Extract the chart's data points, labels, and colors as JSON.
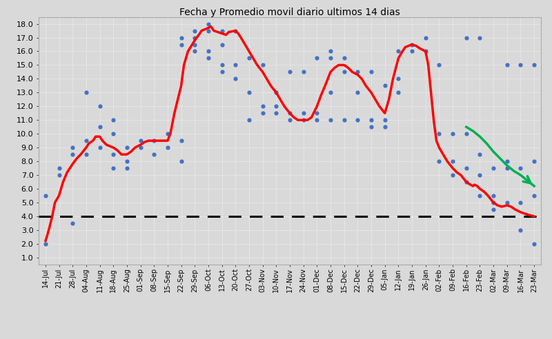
{
  "title": "Fecha y Promedio movil diario ultimos 14 dias",
  "ylim": [
    0.5,
    18.5
  ],
  "yticks": [
    1.0,
    2.0,
    3.0,
    4.0,
    5.0,
    6.0,
    7.0,
    8.0,
    9.0,
    10.0,
    11.0,
    12.0,
    13.0,
    14.0,
    15.0,
    16.0,
    17.0,
    18.0
  ],
  "x_labels": [
    "14-Jul",
    "21-Jul",
    "28-Jul",
    "04-Aug",
    "11-Aug",
    "18-Aug",
    "25-Aug",
    "01-Sep",
    "08-Sep",
    "15-Sep",
    "22-Sep",
    "29-Sep",
    "06-Oct",
    "13-Oct",
    "20-Oct",
    "27-Oct",
    "03-Nov",
    "10-Nov",
    "17-Nov",
    "24-Nov",
    "01-Dec",
    "08-Dec",
    "15-Dec",
    "22-Dec",
    "29-Dec",
    "05-Jan",
    "12-Jan",
    "19-Jan",
    "26-Jan",
    "02-Feb",
    "09-Feb",
    "16-Feb",
    "23-Feb",
    "02-Mar",
    "09-Mar",
    "16-Mar",
    "23-Mar"
  ],
  "dashed_line_y": 4.0,
  "background_color": "#d9d9d9",
  "grid_color": "#ffffff",
  "dot_color": "#4472c4",
  "line_color": "#ff0000",
  "dashed_color": "#000000",
  "arrow_color": "#00b050",
  "scatter_data": [
    [
      0,
      2.0
    ],
    [
      0,
      5.5
    ],
    [
      1,
      7.0
    ],
    [
      1,
      7.5
    ],
    [
      2,
      3.5
    ],
    [
      2,
      8.5
    ],
    [
      2,
      9.0
    ],
    [
      3,
      8.5
    ],
    [
      3,
      9.5
    ],
    [
      3,
      13.0
    ],
    [
      4,
      9.0
    ],
    [
      4,
      10.5
    ],
    [
      4,
      12.0
    ],
    [
      5,
      7.5
    ],
    [
      5,
      8.5
    ],
    [
      5,
      10.0
    ],
    [
      5,
      11.0
    ],
    [
      6,
      7.5
    ],
    [
      6,
      8.0
    ],
    [
      6,
      9.0
    ],
    [
      7,
      9.0
    ],
    [
      7,
      9.5
    ],
    [
      8,
      8.5
    ],
    [
      8,
      9.5
    ],
    [
      9,
      9.0
    ],
    [
      9,
      10.0
    ],
    [
      10,
      8.0
    ],
    [
      10,
      9.5
    ],
    [
      10,
      16.5
    ],
    [
      10,
      17.0
    ],
    [
      11,
      16.0
    ],
    [
      11,
      16.5
    ],
    [
      11,
      17.0
    ],
    [
      11,
      17.5
    ],
    [
      12,
      15.5
    ],
    [
      12,
      16.0
    ],
    [
      12,
      17.5
    ],
    [
      12,
      18.0
    ],
    [
      13,
      14.5
    ],
    [
      13,
      15.0
    ],
    [
      13,
      16.5
    ],
    [
      13,
      17.5
    ],
    [
      14,
      14.0
    ],
    [
      14,
      15.0
    ],
    [
      14,
      17.5
    ],
    [
      15,
      11.0
    ],
    [
      15,
      13.0
    ],
    [
      15,
      15.5
    ],
    [
      16,
      11.5
    ],
    [
      16,
      12.0
    ],
    [
      16,
      15.0
    ],
    [
      17,
      11.5
    ],
    [
      17,
      12.0
    ],
    [
      17,
      13.0
    ],
    [
      18,
      11.0
    ],
    [
      18,
      11.5
    ],
    [
      18,
      14.5
    ],
    [
      19,
      11.0
    ],
    [
      19,
      11.5
    ],
    [
      19,
      14.5
    ],
    [
      20,
      11.0
    ],
    [
      20,
      11.5
    ],
    [
      20,
      15.5
    ],
    [
      21,
      11.0
    ],
    [
      21,
      13.0
    ],
    [
      21,
      15.5
    ],
    [
      21,
      16.0
    ],
    [
      22,
      11.0
    ],
    [
      22,
      14.5
    ],
    [
      22,
      15.5
    ],
    [
      23,
      11.0
    ],
    [
      23,
      13.0
    ],
    [
      23,
      14.5
    ],
    [
      24,
      10.5
    ],
    [
      24,
      11.0
    ],
    [
      24,
      14.5
    ],
    [
      25,
      10.5
    ],
    [
      25,
      11.0
    ],
    [
      25,
      13.5
    ],
    [
      26,
      13.0
    ],
    [
      26,
      14.0
    ],
    [
      26,
      16.0
    ],
    [
      27,
      16.0
    ],
    [
      27,
      16.5
    ],
    [
      28,
      16.0
    ],
    [
      28,
      17.0
    ],
    [
      29,
      8.0
    ],
    [
      29,
      10.0
    ],
    [
      29,
      15.0
    ],
    [
      30,
      7.0
    ],
    [
      30,
      8.0
    ],
    [
      30,
      10.0
    ],
    [
      31,
      6.5
    ],
    [
      31,
      7.5
    ],
    [
      31,
      10.0
    ],
    [
      31,
      17.0
    ],
    [
      32,
      5.5
    ],
    [
      32,
      7.0
    ],
    [
      32,
      8.5
    ],
    [
      32,
      17.0
    ],
    [
      33,
      4.5
    ],
    [
      33,
      5.0
    ],
    [
      33,
      5.5
    ],
    [
      33,
      7.5
    ],
    [
      34,
      5.0
    ],
    [
      34,
      7.5
    ],
    [
      34,
      8.0
    ],
    [
      34,
      15.0
    ],
    [
      35,
      3.0
    ],
    [
      35,
      5.0
    ],
    [
      35,
      7.5
    ],
    [
      35,
      15.0
    ],
    [
      36,
      2.0
    ],
    [
      36,
      5.5
    ],
    [
      36,
      8.0
    ],
    [
      36,
      15.0
    ]
  ],
  "red_line_data": [
    [
      0,
      2.2
    ],
    [
      0.1,
      2.5
    ],
    [
      0.3,
      3.2
    ],
    [
      0.5,
      4.0
    ],
    [
      0.7,
      5.0
    ],
    [
      1,
      5.5
    ],
    [
      1.3,
      6.5
    ],
    [
      1.6,
      7.2
    ],
    [
      2,
      7.8
    ],
    [
      2.3,
      8.2
    ],
    [
      2.6,
      8.5
    ],
    [
      3,
      9.0
    ],
    [
      3.2,
      9.3
    ],
    [
      3.5,
      9.5
    ],
    [
      3.7,
      9.8
    ],
    [
      4,
      9.8
    ],
    [
      4.2,
      9.5
    ],
    [
      4.5,
      9.2
    ],
    [
      5,
      9.0
    ],
    [
      5.3,
      8.8
    ],
    [
      5.6,
      8.5
    ],
    [
      6,
      8.5
    ],
    [
      6.3,
      8.7
    ],
    [
      6.6,
      9.0
    ],
    [
      7,
      9.2
    ],
    [
      7.3,
      9.4
    ],
    [
      7.6,
      9.5
    ],
    [
      8,
      9.5
    ],
    [
      8.3,
      9.5
    ],
    [
      8.6,
      9.5
    ],
    [
      9,
      9.5
    ],
    [
      9.2,
      10.0
    ],
    [
      9.5,
      11.5
    ],
    [
      10,
      13.5
    ],
    [
      10.2,
      15.0
    ],
    [
      10.5,
      16.0
    ],
    [
      11,
      16.8
    ],
    [
      11.3,
      17.2
    ],
    [
      11.5,
      17.5
    ],
    [
      12,
      17.7
    ],
    [
      12.2,
      17.8
    ],
    [
      12.4,
      17.5
    ],
    [
      13,
      17.3
    ],
    [
      13.3,
      17.2
    ],
    [
      13.5,
      17.4
    ],
    [
      14,
      17.5
    ],
    [
      14.2,
      17.3
    ],
    [
      14.4,
      17.0
    ],
    [
      15,
      16.0
    ],
    [
      15.3,
      15.5
    ],
    [
      15.6,
      15.0
    ],
    [
      16,
      14.5
    ],
    [
      16.3,
      14.0
    ],
    [
      16.6,
      13.5
    ],
    [
      17,
      13.0
    ],
    [
      17.3,
      12.5
    ],
    [
      17.6,
      12.0
    ],
    [
      18,
      11.5
    ],
    [
      18.3,
      11.2
    ],
    [
      18.6,
      11.0
    ],
    [
      19,
      11.0
    ],
    [
      19.3,
      11.0
    ],
    [
      19.6,
      11.2
    ],
    [
      20,
      12.0
    ],
    [
      20.3,
      12.8
    ],
    [
      20.6,
      13.5
    ],
    [
      21,
      14.5
    ],
    [
      21.3,
      14.8
    ],
    [
      21.6,
      15.0
    ],
    [
      22,
      15.0
    ],
    [
      22.3,
      14.8
    ],
    [
      22.6,
      14.5
    ],
    [
      23,
      14.3
    ],
    [
      23.3,
      14.0
    ],
    [
      23.6,
      13.5
    ],
    [
      24,
      13.0
    ],
    [
      24.3,
      12.5
    ],
    [
      24.6,
      12.0
    ],
    [
      25,
      11.5
    ],
    [
      25.3,
      12.5
    ],
    [
      25.6,
      14.0
    ],
    [
      26,
      15.5
    ],
    [
      26.3,
      16.0
    ],
    [
      26.5,
      16.3
    ],
    [
      27,
      16.5
    ],
    [
      27.3,
      16.4
    ],
    [
      27.6,
      16.2
    ],
    [
      28,
      16.0
    ],
    [
      28.2,
      15.0
    ],
    [
      28.4,
      13.0
    ],
    [
      28.6,
      11.0
    ],
    [
      28.8,
      9.5
    ],
    [
      29,
      9.0
    ],
    [
      29.3,
      8.5
    ],
    [
      29.6,
      8.0
    ],
    [
      30,
      7.5
    ],
    [
      30.3,
      7.2
    ],
    [
      30.6,
      7.0
    ],
    [
      31,
      6.5
    ],
    [
      31.3,
      6.3
    ],
    [
      31.5,
      6.2
    ],
    [
      31.6,
      6.3
    ],
    [
      31.8,
      6.2
    ],
    [
      32,
      6.0
    ],
    [
      32.3,
      5.8
    ],
    [
      32.6,
      5.5
    ],
    [
      33,
      5.0
    ],
    [
      33.3,
      4.8
    ],
    [
      33.6,
      4.7
    ],
    [
      34,
      4.8
    ],
    [
      34.3,
      4.7
    ],
    [
      34.6,
      4.5
    ],
    [
      35,
      4.3
    ],
    [
      35.3,
      4.2
    ],
    [
      35.6,
      4.1
    ],
    [
      36,
      4.0
    ]
  ],
  "green_line_x": [
    31.0,
    31.5,
    32.0,
    32.5,
    33.0,
    33.5,
    34.0,
    34.5,
    35.0,
    35.5,
    36.0
  ],
  "green_line_y": [
    10.5,
    10.2,
    9.8,
    9.3,
    8.7,
    8.2,
    7.7,
    7.3,
    7.0,
    6.6,
    6.2
  ]
}
